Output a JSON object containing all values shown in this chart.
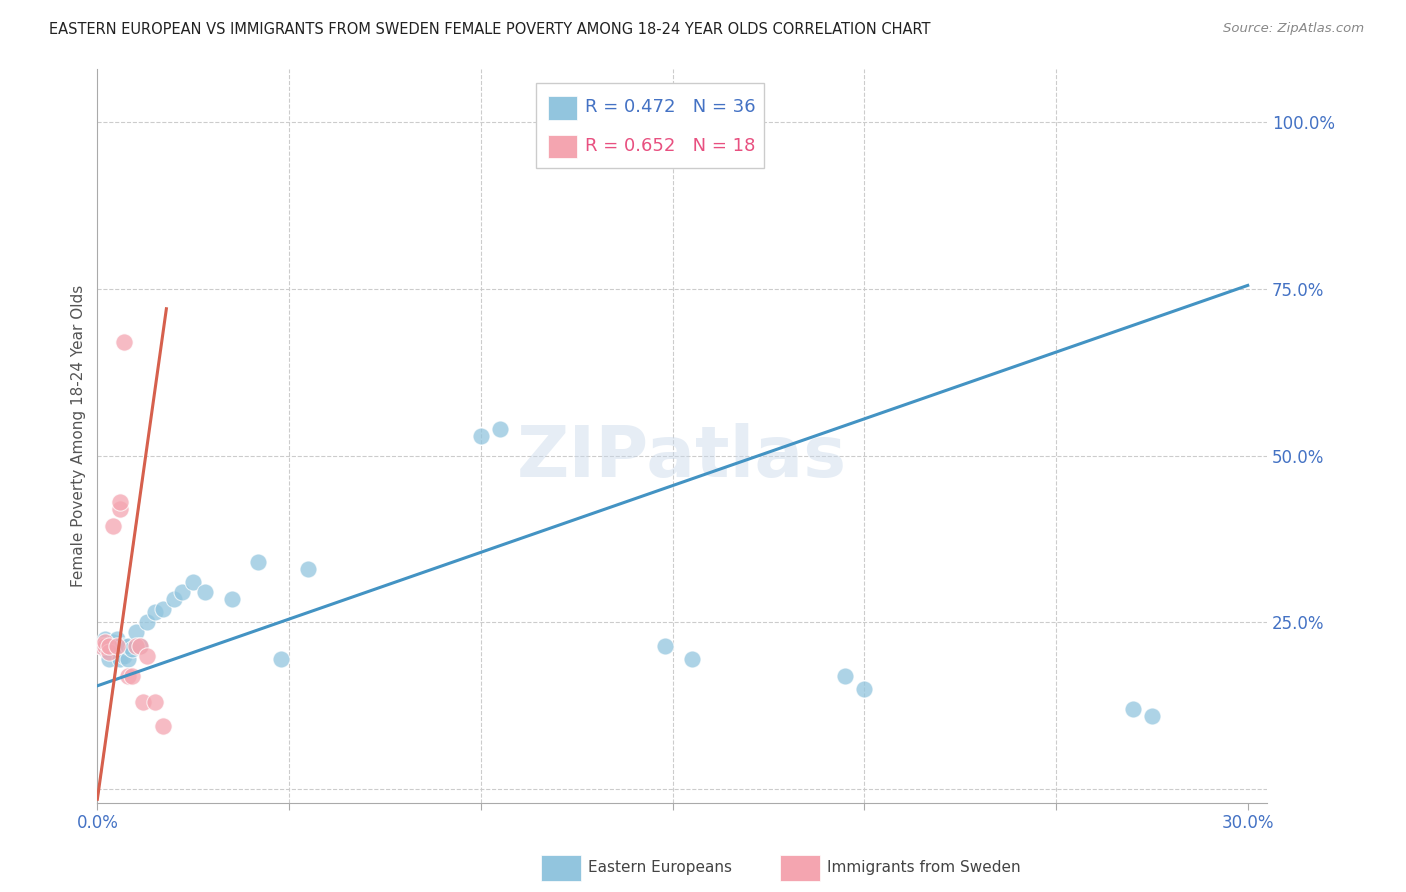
{
  "title": "EASTERN EUROPEAN VS IMMIGRANTS FROM SWEDEN FEMALE POVERTY AMONG 18-24 YEAR OLDS CORRELATION CHART",
  "source": "Source: ZipAtlas.com",
  "ylabel": "Female Poverty Among 18-24 Year Olds",
  "xlim": [
    0.0,
    0.305
  ],
  "ylim": [
    -0.02,
    1.08
  ],
  "blue_R": 0.472,
  "blue_N": 36,
  "pink_R": 0.652,
  "pink_N": 18,
  "blue_color": "#92c5de",
  "pink_color": "#f4a5b0",
  "trend_blue_color": "#4393c3",
  "trend_pink_color": "#d6604d",
  "watermark": "ZIPatlas",
  "legend_label_blue": "Eastern Europeans",
  "legend_label_pink": "Immigrants from Sweden",
  "blue_points_x": [
    0.001,
    0.002,
    0.002,
    0.003,
    0.004,
    0.004,
    0.005,
    0.005,
    0.006,
    0.006,
    0.007,
    0.007,
    0.008,
    0.008,
    0.009,
    0.01,
    0.011,
    0.013,
    0.015,
    0.017,
    0.02,
    0.022,
    0.025,
    0.028,
    0.035,
    0.042,
    0.048,
    0.055,
    0.1,
    0.105,
    0.148,
    0.155,
    0.195,
    0.2,
    0.27,
    0.275
  ],
  "blue_points_y": [
    0.215,
    0.21,
    0.225,
    0.195,
    0.215,
    0.22,
    0.21,
    0.225,
    0.195,
    0.215,
    0.2,
    0.215,
    0.195,
    0.215,
    0.21,
    0.235,
    0.215,
    0.25,
    0.265,
    0.27,
    0.285,
    0.295,
    0.31,
    0.295,
    0.285,
    0.34,
    0.195,
    0.33,
    0.53,
    0.54,
    0.215,
    0.195,
    0.17,
    0.15,
    0.12,
    0.11
  ],
  "pink_points_x": [
    0.001,
    0.002,
    0.002,
    0.003,
    0.003,
    0.004,
    0.005,
    0.006,
    0.006,
    0.007,
    0.008,
    0.009,
    0.01,
    0.011,
    0.012,
    0.013,
    0.015,
    0.017
  ],
  "pink_points_y": [
    0.215,
    0.215,
    0.22,
    0.205,
    0.215,
    0.395,
    0.215,
    0.42,
    0.43,
    0.67,
    0.17,
    0.17,
    0.215,
    0.215,
    0.13,
    0.2,
    0.13,
    0.095
  ],
  "blue_trend_x0": 0.0,
  "blue_trend_y0": 0.155,
  "blue_trend_x1": 0.3,
  "blue_trend_y1": 0.755,
  "pink_trend_x0": 0.0,
  "pink_trend_y0": -0.015,
  "pink_trend_x1": 0.018,
  "pink_trend_y1": 0.72
}
